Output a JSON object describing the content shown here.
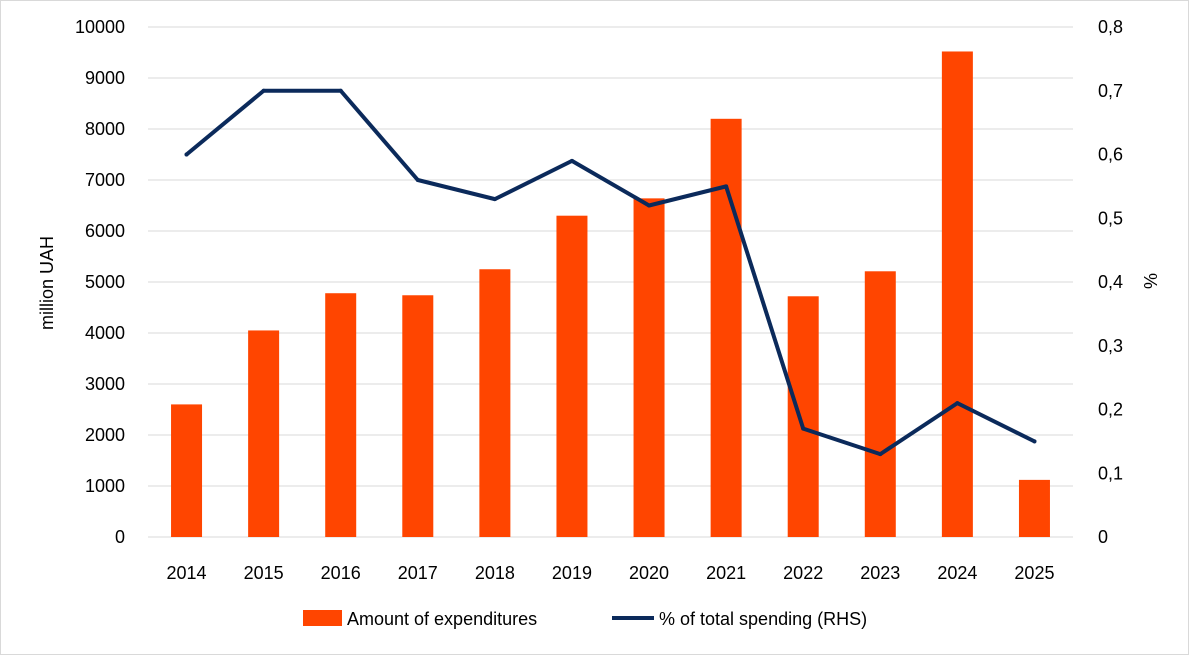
{
  "chart_data": {
    "type": "bar+line",
    "categories": [
      "2014",
      "2015",
      "2016",
      "2017",
      "2018",
      "2019",
      "2020",
      "2021",
      "2022",
      "2023",
      "2024",
      "2025"
    ],
    "series": [
      {
        "name": "Amount of expenditures",
        "kind": "bar",
        "axis": "left",
        "color": "#ff4500",
        "values": [
          2600,
          4050,
          4780,
          4740,
          5250,
          6300,
          6640,
          8200,
          4720,
          5210,
          9520,
          1120
        ]
      },
      {
        "name": "% of total spending (RHS)",
        "kind": "line",
        "axis": "right",
        "color": "#0b2a5b",
        "values": [
          0.6,
          0.7,
          0.7,
          0.56,
          0.53,
          0.59,
          0.52,
          0.55,
          0.17,
          0.13,
          0.21,
          0.15
        ]
      }
    ],
    "ylabel": "million UAH",
    "ylabel_right": "%",
    "ylim": [
      0,
      10000
    ],
    "ylim_right": [
      0,
      0.8
    ],
    "yticks_left": [
      "0",
      "1000",
      "2000",
      "3000",
      "4000",
      "5000",
      "6000",
      "7000",
      "8000",
      "9000",
      "10000"
    ],
    "yticks_right": [
      "0",
      "0,1",
      "0,2",
      "0,3",
      "0,4",
      "0,5",
      "0,6",
      "0,7",
      "0,8"
    ],
    "grid": true,
    "legend_position": "bottom"
  }
}
